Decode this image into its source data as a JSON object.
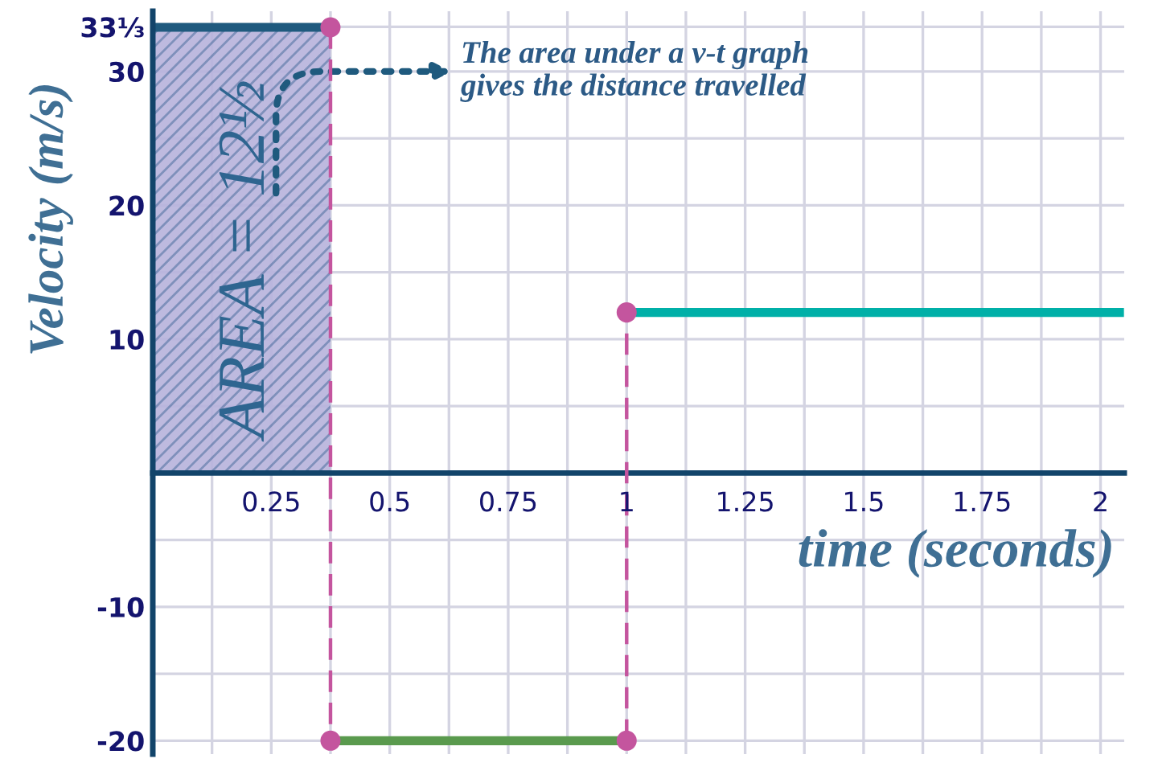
{
  "chart_data": {
    "type": "line",
    "xlabel": "time (seconds)",
    "ylabel": "Velocity (m/s)",
    "annotations": [
      "AREA = 12½",
      "The area under a v-t graph\ngives the distance travelled"
    ],
    "series": [
      {
        "type": "area",
        "x": [
          0,
          0.375
        ],
        "values": [
          33.3,
          33.3
        ],
        "color": "#1f5a7e"
      },
      {
        "x": [
          0.375,
          1
        ],
        "values": [
          -20,
          -20
        ],
        "color": "#5a9a4e"
      },
      {
        "x": [
          1,
          2.04
        ],
        "values": [
          12,
          12
        ],
        "color": "#00b0a8"
      },
      {
        "x": [
          0.375,
          0.375
        ],
        "values": [
          33.3,
          -20
        ],
        "color": "#c4559e",
        "line_style": "dashed",
        "marker": "circle"
      },
      {
        "x": [
          1,
          1
        ],
        "values": [
          -20,
          12
        ],
        "color": "#c4559e",
        "line_style": "dashed",
        "marker": "circle"
      }
    ],
    "xlim": [
      0,
      2.05
    ],
    "ylim": [
      -21,
      34.5
    ],
    "xticks": [
      {
        "value": 0,
        "label": null
      },
      {
        "value": 0.125,
        "label": null
      },
      0.25,
      {
        "value": 0.375,
        "label": null
      },
      0.5,
      {
        "value": 0.625,
        "label": null
      },
      0.75,
      {
        "value": 0.875,
        "label": null
      },
      1,
      {
        "value": 1.125,
        "label": null
      },
      1.25,
      {
        "value": 1.375,
        "label": null
      },
      1.5,
      {
        "value": 1.625,
        "label": null
      },
      1.75,
      {
        "value": 1.875,
        "label": null
      },
      2
    ],
    "yticks": [
      -20,
      {
        "value": -15,
        "label": null
      },
      -10,
      {
        "value": -5,
        "label": null
      },
      {
        "value": 0,
        "label": null
      },
      {
        "value": 5,
        "label": null
      },
      10,
      {
        "value": 15,
        "label": null
      },
      20,
      {
        "value": 25,
        "label": null
      },
      30,
      {
        "value": 33.333,
        "label": "33⅓"
      }
    ],
    "grid": true
  }
}
